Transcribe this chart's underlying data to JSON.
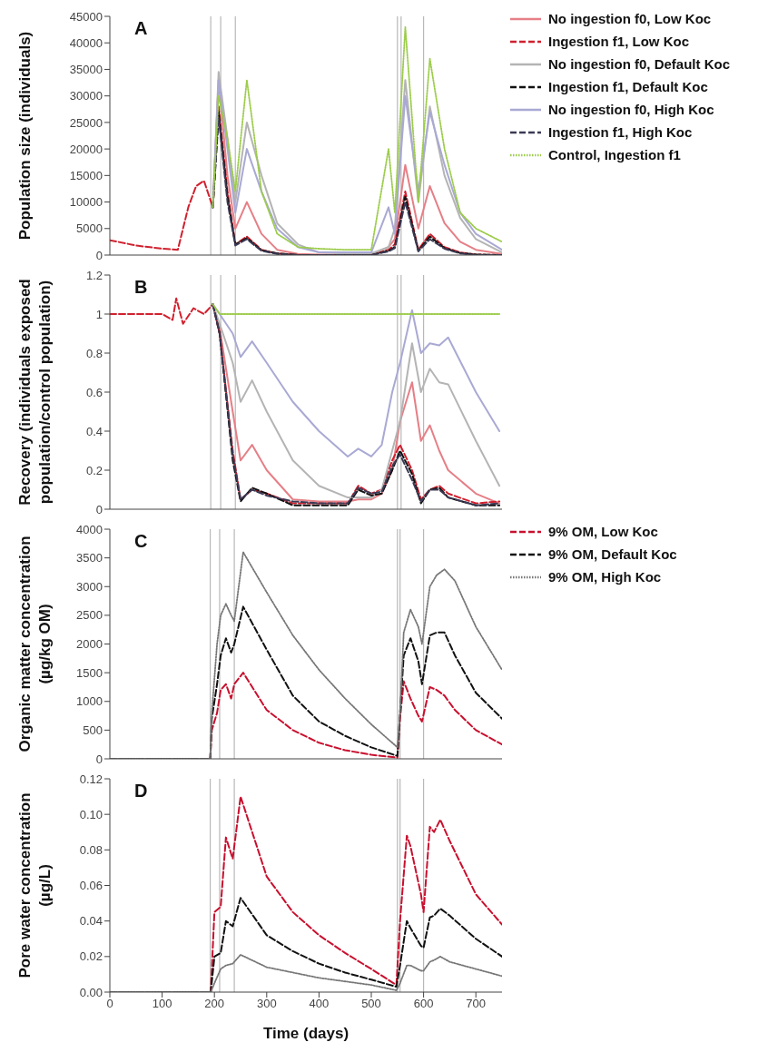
{
  "chart_data": [
    {
      "type": "line",
      "title": "A",
      "ylabel": "Population size (individuals)",
      "xlim": [
        0,
        750
      ],
      "xticks": [
        0,
        100,
        200,
        300,
        400,
        500,
        600,
        700
      ],
      "ylim": [
        0,
        45000
      ],
      "yticks": [
        0,
        5000,
        10000,
        15000,
        20000,
        25000,
        30000,
        35000,
        40000,
        45000
      ],
      "tick_labels": "y",
      "legend": "right",
      "x": [
        0,
        50,
        100,
        130,
        150,
        165,
        180,
        197,
        208,
        225,
        240,
        262,
        290,
        320,
        360,
        400,
        450,
        500,
        533,
        545,
        565,
        590,
        612,
        640,
        670,
        700,
        750
      ],
      "ref_lines": [
        {
          "axis": "x",
          "value": 193,
          "color": "#b8b8b8"
        },
        {
          "axis": "x",
          "value": 212,
          "color": "#b8b8b8"
        },
        {
          "axis": "x",
          "value": 240,
          "color": "#b8b8b8"
        },
        {
          "axis": "x",
          "value": 550,
          "color": "#b8b8b8"
        },
        {
          "axis": "x",
          "value": 557,
          "color": "#b8b8b8"
        },
        {
          "axis": "x",
          "value": 600,
          "color": "#b8b8b8"
        }
      ],
      "series": [
        {
          "name": "No ingestion f0, Low Koc",
          "color": "#e57f86",
          "line_style": "solid",
          "values": [
            null,
            null,
            null,
            null,
            null,
            null,
            null,
            9000,
            33000,
            15000,
            5000,
            10000,
            4000,
            1000,
            200,
            100,
            100,
            100,
            1500,
            3000,
            17000,
            5000,
            13000,
            6000,
            2500,
            1000,
            200
          ]
        },
        {
          "name": "Ingestion f1, Low Koc",
          "color": "#d0202e",
          "line_style": "dashed",
          "values": [
            2800,
            1800,
            1200,
            1000,
            9000,
            13000,
            14000,
            9000,
            28000,
            12000,
            2000,
            3500,
            1000,
            300,
            0,
            0,
            0,
            0,
            1000,
            2000,
            12000,
            1000,
            4000,
            1500,
            500,
            100,
            0
          ]
        },
        {
          "name": "No ingestion f0, Default Koc",
          "color": "#b4b4b4",
          "line_style": "solid",
          "values": [
            null,
            null,
            null,
            null,
            null,
            null,
            null,
            9000,
            34500,
            22000,
            10000,
            25000,
            15000,
            6000,
            2000,
            500,
            300,
            300,
            1500,
            5000,
            33000,
            10000,
            28000,
            15000,
            7000,
            3000,
            500
          ]
        },
        {
          "name": "Ingestion f1, Default Koc",
          "color": "#111111",
          "line_style": "dashed",
          "values": [
            null,
            null,
            null,
            null,
            null,
            null,
            null,
            9000,
            27000,
            11000,
            2000,
            3200,
            900,
            300,
            0,
            0,
            0,
            0,
            800,
            1500,
            11000,
            800,
            3500,
            1300,
            400,
            100,
            0
          ]
        },
        {
          "name": "No ingestion f0, High Koc",
          "color": "#a9a9d4",
          "line_style": "solid",
          "values": [
            null,
            null,
            null,
            null,
            null,
            null,
            null,
            9000,
            33000,
            20000,
            8000,
            20000,
            12000,
            5000,
            1500,
            500,
            500,
            500,
            9000,
            4000,
            30000,
            12000,
            27000,
            17000,
            8000,
            4000,
            1000
          ]
        },
        {
          "name": "Ingestion f1, High Koc",
          "color": "#3a3a55",
          "line_style": "dashed",
          "values": [
            null,
            null,
            null,
            null,
            null,
            null,
            null,
            9000,
            26000,
            10000,
            1800,
            3000,
            800,
            200,
            0,
            0,
            0,
            0,
            700,
            1300,
            10000,
            700,
            3000,
            1200,
            300,
            0,
            0
          ]
        },
        {
          "name": "Control, Ingestion f1",
          "color": "#9ccc4a",
          "line_style": "dotted",
          "values": [
            null,
            null,
            null,
            null,
            null,
            null,
            null,
            9000,
            30000,
            22000,
            12000,
            33000,
            12000,
            4000,
            1500,
            1200,
            1000,
            1000,
            20000,
            8000,
            43000,
            10000,
            37000,
            20000,
            8000,
            5000,
            2500
          ]
        }
      ]
    },
    {
      "type": "line",
      "title": "B",
      "ylabel": "Recovery (individuals exposed population/control population)",
      "xlim": [
        0,
        750
      ],
      "xticks": [
        0,
        100,
        200,
        300,
        400,
        500,
        600,
        700
      ],
      "ylim": [
        0,
        1.2
      ],
      "yticks": [
        0,
        0.2,
        0.4,
        0.6,
        0.8,
        1,
        1.2
      ],
      "tick_labels": "y",
      "x": [
        0,
        100,
        120,
        127,
        140,
        160,
        180,
        197,
        210,
        235,
        250,
        272,
        300,
        350,
        400,
        455,
        475,
        500,
        520,
        540,
        555,
        578,
        595,
        612,
        630,
        647,
        700,
        745
      ],
      "ref_lines": [
        {
          "axis": "x",
          "value": 193,
          "color": "#b8b8b8"
        },
        {
          "axis": "x",
          "value": 212,
          "color": "#b8b8b8"
        },
        {
          "axis": "x",
          "value": 240,
          "color": "#b8b8b8"
        },
        {
          "axis": "x",
          "value": 550,
          "color": "#b8b8b8"
        },
        {
          "axis": "x",
          "value": 557,
          "color": "#b8b8b8"
        },
        {
          "axis": "x",
          "value": 600,
          "color": "#b8b8b8"
        }
      ],
      "series": [
        {
          "color": "#e57f86",
          "line_style": "solid",
          "values": [
            null,
            null,
            null,
            null,
            null,
            null,
            null,
            1.05,
            0.93,
            0.5,
            0.25,
            0.33,
            0.2,
            0.05,
            0.04,
            0.04,
            0.05,
            0.05,
            0.08,
            0.2,
            0.45,
            0.65,
            0.35,
            0.43,
            0.3,
            0.2,
            0.08,
            0.03
          ]
        },
        {
          "color": "#d0202e",
          "line_style": "dashed",
          "values": [
            1,
            1,
            0.97,
            1.08,
            0.95,
            1.03,
            1,
            1.05,
            0.9,
            0.3,
            0.05,
            0.1,
            0.08,
            0.03,
            0.03,
            0.03,
            0.12,
            0.08,
            0.1,
            0.25,
            0.33,
            0.2,
            0.05,
            0.1,
            0.12,
            0.08,
            0.03,
            0.04
          ]
        },
        {
          "color": "#b4b4b4",
          "line_style": "solid",
          "values": [
            null,
            null,
            null,
            null,
            null,
            null,
            null,
            1.05,
            0.95,
            0.75,
            0.55,
            0.66,
            0.5,
            0.25,
            0.12,
            0.06,
            0.06,
            0.06,
            0.1,
            0.3,
            0.45,
            0.85,
            0.6,
            0.72,
            0.65,
            0.64,
            0.35,
            0.12
          ]
        },
        {
          "color": "#111111",
          "line_style": "dashed",
          "values": [
            null,
            null,
            null,
            null,
            null,
            null,
            null,
            1.05,
            0.9,
            0.25,
            0.04,
            0.11,
            0.08,
            0.02,
            0.02,
            0.02,
            0.1,
            0.07,
            0.08,
            0.2,
            0.3,
            0.18,
            0.03,
            0.1,
            0.11,
            0.06,
            0.02,
            0.02
          ]
        },
        {
          "color": "#a9a9d4",
          "line_style": "solid",
          "values": [
            null,
            null,
            null,
            null,
            null,
            null,
            null,
            1.05,
            1,
            0.9,
            0.78,
            0.86,
            0.75,
            0.55,
            0.4,
            0.27,
            0.31,
            0.27,
            0.33,
            0.6,
            0.75,
            1.02,
            0.8,
            0.85,
            0.84,
            0.88,
            0.6,
            0.4
          ]
        },
        {
          "color": "#3a3a55",
          "line_style": "dashed",
          "values": [
            null,
            null,
            null,
            null,
            null,
            null,
            null,
            1.05,
            0.9,
            0.28,
            0.05,
            0.1,
            0.07,
            0.04,
            0.03,
            0.03,
            0.11,
            0.08,
            0.09,
            0.22,
            0.28,
            0.15,
            0.04,
            0.1,
            0.1,
            0.06,
            0.02,
            0.03
          ]
        },
        {
          "color": "#9ccc4a",
          "line_style": "dotted",
          "values": [
            null,
            null,
            null,
            null,
            null,
            null,
            null,
            1.05,
            1,
            1,
            1,
            1,
            1,
            1,
            1,
            1,
            1,
            1,
            1,
            1,
            1,
            1,
            1,
            1,
            1,
            1,
            1,
            1
          ]
        }
      ]
    },
    {
      "type": "line",
      "title": "C",
      "ylabel": "Organic matter concentration (µg/kg OM)",
      "xlim": [
        0,
        750
      ],
      "xticks": [
        0,
        100,
        200,
        300,
        400,
        500,
        600,
        700
      ],
      "ylim": [
        0,
        4000
      ],
      "yticks": [
        0,
        500,
        1000,
        1500,
        2000,
        2500,
        3000,
        3500,
        4000
      ],
      "tick_labels": "y",
      "legend": "right",
      "x": [
        0,
        192,
        195,
        205,
        212,
        222,
        232,
        238,
        255,
        300,
        350,
        400,
        450,
        500,
        550,
        555,
        562,
        575,
        590,
        597,
        612,
        625,
        640,
        660,
        700,
        750
      ],
      "ref_lines": [
        {
          "axis": "x",
          "value": 192,
          "color": "#b8b8b8"
        },
        {
          "axis": "x",
          "value": 210,
          "color": "#b8b8b8"
        },
        {
          "axis": "x",
          "value": 238,
          "color": "#b8b8b8"
        },
        {
          "axis": "x",
          "value": 550,
          "color": "#b8b8b8"
        },
        {
          "axis": "x",
          "value": 555,
          "color": "#b8b8b8"
        },
        {
          "axis": "x",
          "value": 600,
          "color": "#b8b8b8"
        }
      ],
      "series": [
        {
          "name": "9% OM, Low Koc",
          "color": "#c8102e",
          "line_style": "dashed",
          "values": [
            0,
            0,
            500,
            800,
            1200,
            1300,
            1050,
            1300,
            1500,
            850,
            500,
            280,
            150,
            70,
            20,
            700,
            1350,
            1050,
            750,
            650,
            1250,
            1200,
            1100,
            850,
            500,
            250
          ]
        },
        {
          "name": "9% OM, Default Koc",
          "color": "#111111",
          "line_style": "dashed",
          "values": [
            0,
            0,
            700,
            1300,
            1800,
            2100,
            1850,
            2000,
            2650,
            1900,
            1100,
            650,
            400,
            200,
            50,
            800,
            1800,
            2100,
            1700,
            1300,
            2150,
            2200,
            2200,
            1800,
            1150,
            700
          ]
        },
        {
          "name": "9% OM, High Koc",
          "color": "#777777",
          "line_style": "dotted",
          "values": [
            0,
            0,
            800,
            2000,
            2500,
            2700,
            2500,
            2400,
            3600,
            2900,
            2150,
            1550,
            1050,
            600,
            200,
            800,
            2200,
            2600,
            2300,
            2000,
            3000,
            3200,
            3300,
            3100,
            2300,
            1550
          ]
        }
      ]
    },
    {
      "type": "line",
      "title": "D",
      "xlabel": "Time (days)",
      "ylabel": "Pore water concentration (µg/L)",
      "xlim": [
        0,
        750
      ],
      "xticks": [
        0,
        100,
        200,
        300,
        400,
        500,
        600,
        700
      ],
      "ylim": [
        0,
        0.12
      ],
      "yticks": [
        {
          "value": 0,
          "label": "0.00"
        },
        {
          "value": 0.02,
          "label": "0.02"
        },
        {
          "value": 0.04,
          "label": "0.04"
        },
        {
          "value": 0.06,
          "label": "0.06"
        },
        {
          "value": 0.08,
          "label": "0.08"
        },
        {
          "value": 0.1,
          "label": "0.10"
        },
        {
          "value": 0.12,
          "label": "0.12"
        }
      ],
      "x": [
        0,
        193,
        200,
        212,
        222,
        235,
        250,
        300,
        350,
        400,
        450,
        500,
        548,
        555,
        568,
        575,
        595,
        600,
        612,
        620,
        632,
        650,
        700,
        750
      ],
      "ref_lines": [
        {
          "axis": "x",
          "value": 192,
          "color": "#b8b8b8"
        },
        {
          "axis": "x",
          "value": 210,
          "color": "#b8b8b8"
        },
        {
          "axis": "x",
          "value": 238,
          "color": "#b8b8b8"
        },
        {
          "axis": "x",
          "value": 550,
          "color": "#b8b8b8"
        },
        {
          "axis": "x",
          "value": 555,
          "color": "#b8b8b8"
        },
        {
          "axis": "x",
          "value": 600,
          "color": "#b8b8b8"
        }
      ],
      "series": [
        {
          "color": "#c8102e",
          "line_style": "dashed",
          "values": [
            0,
            0,
            0.045,
            0.048,
            0.087,
            0.075,
            0.11,
            0.065,
            0.045,
            0.032,
            0.022,
            0.013,
            0.004,
            0.04,
            0.088,
            0.082,
            0.055,
            0.045,
            0.093,
            0.09,
            0.097,
            0.085,
            0.055,
            0.038
          ]
        },
        {
          "color": "#111111",
          "line_style": "dashed",
          "values": [
            0,
            0,
            0.02,
            0.022,
            0.04,
            0.037,
            0.053,
            0.032,
            0.023,
            0.016,
            0.011,
            0.007,
            0.003,
            0.015,
            0.04,
            0.036,
            0.026,
            0.025,
            0.042,
            0.043,
            0.047,
            0.043,
            0.03,
            0.02
          ]
        },
        {
          "color": "#777777",
          "line_style": "dotted",
          "values": [
            0,
            0,
            0.005,
            0.013,
            0.015,
            0.016,
            0.021,
            0.014,
            0.011,
            0.008,
            0.006,
            0.004,
            0.001,
            0.005,
            0.015,
            0.015,
            0.012,
            0.012,
            0.017,
            0.018,
            0.02,
            0.017,
            0.013,
            0.009
          ]
        }
      ]
    }
  ]
}
